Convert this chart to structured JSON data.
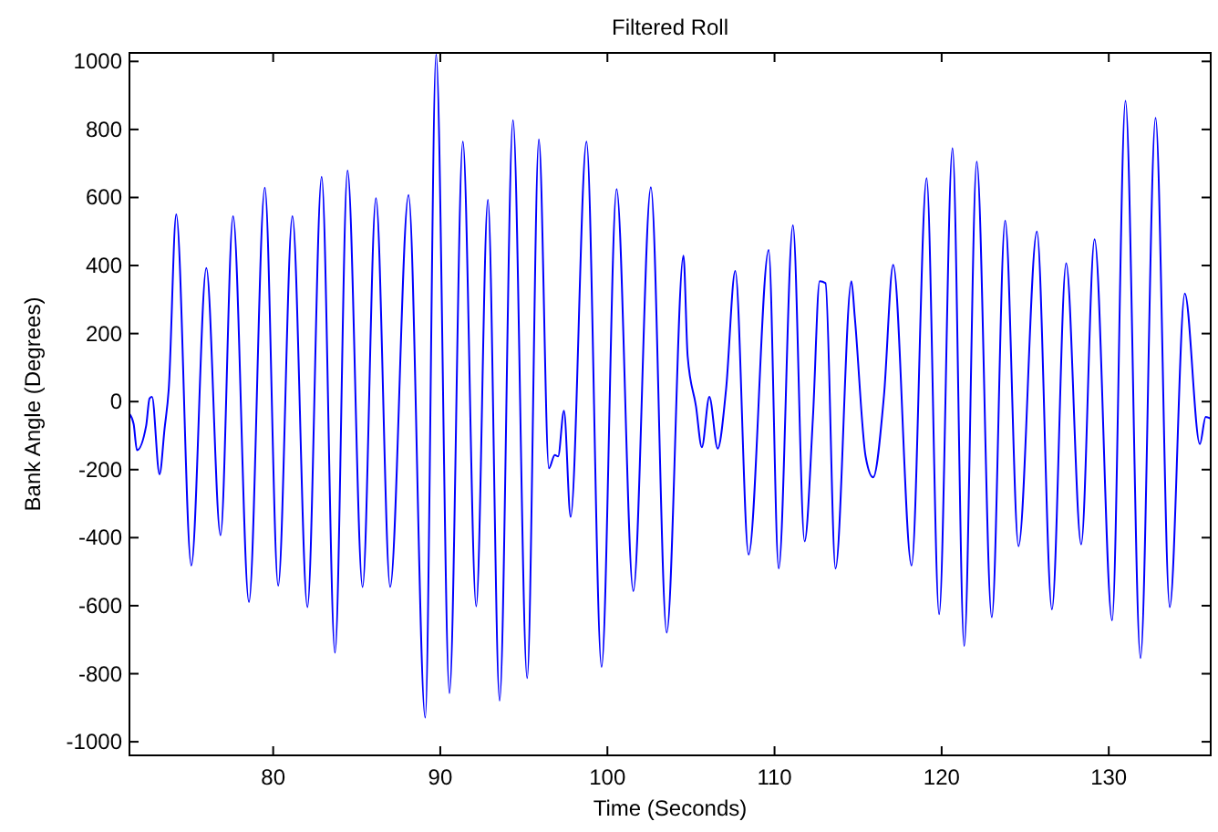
{
  "chart_data": {
    "type": "line",
    "title": "Filtered Roll",
    "xlabel": "Time (Seconds)",
    "ylabel": "Bank Angle (Degrees)",
    "xlim": [
      71.4,
      136.1
    ],
    "xticks": [
      80,
      90,
      100,
      110,
      120,
      130
    ],
    "ylim": [
      -1040,
      1025
    ],
    "yticks": [
      -1000,
      -800,
      -600,
      -400,
      -200,
      0,
      200,
      400,
      600,
      800,
      1000
    ],
    "grid": false,
    "series": [
      {
        "color": "#0000ff",
        "x": [
          71.4,
          71.65,
          71.85,
          72.4,
          72.6,
          72.75,
          73.2,
          73.5,
          73.75,
          74.2,
          75.1,
          76.0,
          76.85,
          77.6,
          78.55,
          79.5,
          80.3,
          81.15,
          82.05,
          82.9,
          83.7,
          84.45,
          85.35,
          86.15,
          87.0,
          88.1,
          89.1,
          89.75,
          90.55,
          91.35,
          92.15,
          92.85,
          93.55,
          94.35,
          95.2,
          95.9,
          96.5,
          96.85,
          97.05,
          97.4,
          97.8,
          98.75,
          99.65,
          100.55,
          101.55,
          102.6,
          103.55,
          104.55,
          104.8,
          105.3,
          105.65,
          106.1,
          106.6,
          107.1,
          107.65,
          108.45,
          109.65,
          110.25,
          111.1,
          111.8,
          112.3,
          112.7,
          113.05,
          113.65,
          114.6,
          114.8,
          115.45,
          115.9,
          116.55,
          117.1,
          118.2,
          119.1,
          119.85,
          120.65,
          121.35,
          122.1,
          123.0,
          123.8,
          124.6,
          125.7,
          126.6,
          127.45,
          128.35,
          129.15,
          130.2,
          131.0,
          131.9,
          132.8,
          133.65,
          134.55,
          135.45,
          135.8,
          136.1
        ],
        "values": [
          -36,
          -66,
          -143,
          -71,
          9,
          14,
          -214,
          -80,
          36,
          550,
          -482,
          393,
          -393,
          545,
          -589,
          629,
          -541,
          545,
          -604,
          661,
          -738,
          679,
          -545,
          598,
          -545,
          607,
          -929,
          1020,
          -857,
          764,
          -602,
          593,
          -879,
          827,
          -813,
          771,
          -196,
          -157,
          -161,
          -27,
          -339,
          764,
          -780,
          625,
          -557,
          630,
          -679,
          429,
          134,
          -14,
          -134,
          14,
          -138,
          36,
          384,
          -450,
          446,
          -491,
          518,
          -411,
          -45,
          354,
          348,
          -491,
          354,
          250,
          -161,
          -223,
          18,
          402,
          -482,
          657,
          -625,
          745,
          -718,
          705,
          -634,
          532,
          -425,
          500,
          -611,
          407,
          -420,
          477,
          -643,
          884,
          -754,
          834,
          -604,
          318,
          -125,
          -45,
          -50
        ]
      }
    ]
  }
}
